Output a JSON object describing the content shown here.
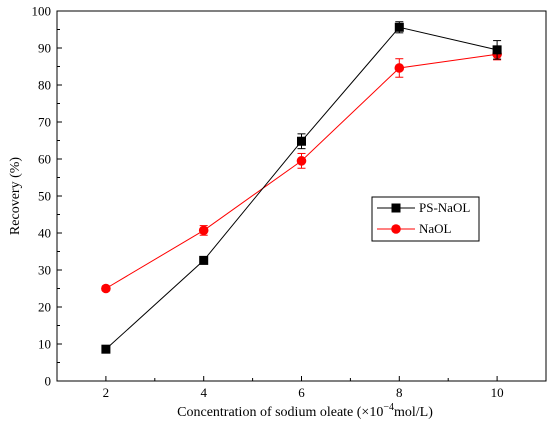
{
  "chart_data": {
    "type": "line",
    "xlabel": "Concentration of sodium oleate (×10",
    "xlabel_exponent": "−4",
    "xlabel_unit": "mol/L)",
    "ylabel": "Recovery (%)",
    "x": [
      2,
      4,
      6,
      8,
      10
    ],
    "xlim": [
      1,
      11
    ],
    "ylim": [
      0,
      100
    ],
    "xticks": [
      2,
      4,
      6,
      8,
      10
    ],
    "yticks": [
      0,
      10,
      20,
      30,
      40,
      50,
      60,
      70,
      80,
      90,
      100
    ],
    "legend_position": "middle-right",
    "grid": false,
    "series": [
      {
        "name": "PS-NaOL",
        "marker": "square",
        "color": "#000000",
        "values": [
          8.6,
          32.6,
          64.8,
          95.6,
          89.5
        ],
        "errors": [
          0.6,
          1.0,
          2.0,
          1.5,
          2.5
        ]
      },
      {
        "name": "NaOL",
        "marker": "circle",
        "color": "#ff0000",
        "values": [
          25.0,
          40.7,
          59.5,
          84.6,
          88.3
        ],
        "errors": [
          0.6,
          1.3,
          2.0,
          2.5,
          1.5
        ]
      }
    ]
  }
}
